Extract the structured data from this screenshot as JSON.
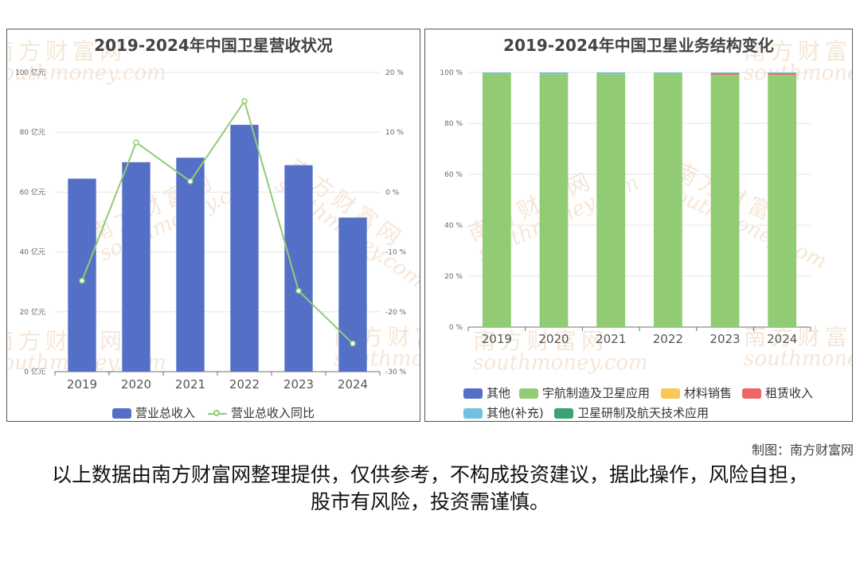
{
  "watermark": {
    "cn": "南方财富网",
    "en": "southmoney.com"
  },
  "credit": "制图：南方财富网",
  "disclaimer": "以上数据由南方财富网整理提供，仅供参考，不构成投资建议，据此操作，风险自担，股市有风险，投资需谨慎。",
  "chart_data": [
    {
      "type": "bar",
      "title": "2019-2024年中国卫星营收状况",
      "categories": [
        "2019",
        "2020",
        "2021",
        "2022",
        "2023",
        "2024"
      ],
      "series": [
        {
          "name": "营业总收入",
          "type": "bar",
          "axis": "left",
          "color": "#5470c6",
          "values": [
            64.5,
            70.0,
            71.5,
            82.5,
            69.0,
            51.5
          ]
        },
        {
          "name": "营业总收入同比",
          "type": "line",
          "axis": "right",
          "color": "#91cc75",
          "values": [
            -14.8,
            8.3,
            1.8,
            15.2,
            -16.5,
            -25.3
          ]
        }
      ],
      "y_left": {
        "min": 0,
        "max": 100,
        "ticks": [
          "0 亿元",
          "20 亿元",
          "40 亿元",
          "60 亿元",
          "80 亿元",
          "100 亿元"
        ]
      },
      "y_right": {
        "min": -30,
        "max": 20,
        "ticks": [
          "-30 %",
          "-20 %",
          "-10 %",
          "0 %",
          "10 %",
          "20 %"
        ]
      },
      "legend": [
        "营业总收入",
        "营业总收入同比"
      ],
      "legend_position": "bottom",
      "grid": true
    },
    {
      "type": "bar",
      "stacked": true,
      "title": "2019-2024年中国卫星业务结构变化",
      "categories": [
        "2019",
        "2020",
        "2021",
        "2022",
        "2023",
        "2024"
      ],
      "series": [
        {
          "name": "其他",
          "color": "#5470c6",
          "values": [
            0,
            0,
            0,
            0,
            0,
            0
          ]
        },
        {
          "name": "宇航制造及卫星应用",
          "color": "#91cc75",
          "values": [
            99.4,
            99.3,
            99.3,
            99.4,
            99.1,
            99.1
          ]
        },
        {
          "name": "材料销售",
          "color": "#fac858",
          "values": [
            0,
            0,
            0,
            0,
            0,
            0
          ]
        },
        {
          "name": "租赁收入",
          "color": "#ee6666",
          "values": [
            0,
            0,
            0,
            0,
            0.6,
            0.6
          ]
        },
        {
          "name": "其他(补充)",
          "color": "#73c0de",
          "values": [
            0.6,
            0.7,
            0.7,
            0.6,
            0.3,
            0.3
          ]
        },
        {
          "name": "卫星研制及航天技术应用",
          "color": "#3ba272",
          "values": [
            0,
            0,
            0,
            0,
            0,
            0
          ]
        }
      ],
      "y_axis": {
        "min": 0,
        "max": 100,
        "ticks": [
          "0 %",
          "20 %",
          "40 %",
          "60 %",
          "80 %",
          "100 %"
        ]
      },
      "legend_position": "bottom",
      "grid": true
    }
  ]
}
